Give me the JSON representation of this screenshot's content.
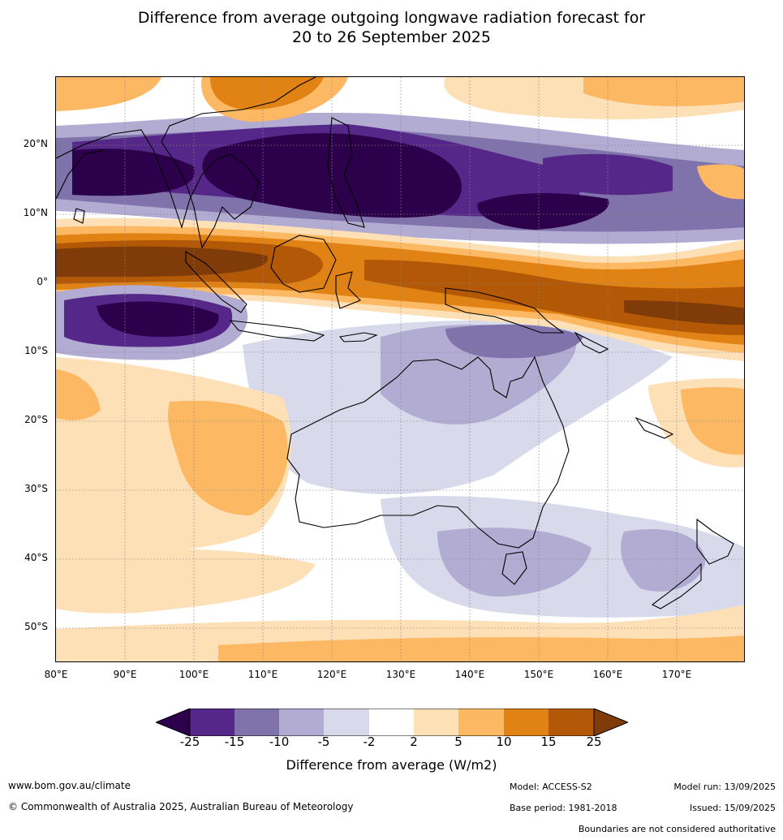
{
  "title": {
    "line1": "Difference from average outgoing longwave radiation forecast for",
    "line2": "20 to 26 September 2025"
  },
  "map": {
    "lat_labels": [
      "20°N",
      "10°N",
      "0°",
      "10°S",
      "20°S",
      "30°S",
      "40°S",
      "50°S"
    ],
    "lon_labels": [
      "80°E",
      "90°E",
      "100°E",
      "110°E",
      "120°E",
      "130°E",
      "140°E",
      "150°E",
      "160°E",
      "170°E"
    ],
    "colors": {
      "m25": "#2d004b",
      "m15": "#542788",
      "m10": "#8073ac",
      "m5": "#b2abd2",
      "m2": "#d8daeb",
      "zero": "#ffffff",
      "p2": "#fee0b6",
      "p5": "#fdb863",
      "p10": "#e08214",
      "p15": "#b35806",
      "p25": "#7f3b08"
    }
  },
  "colorbar": {
    "ticks": [
      "-25",
      "-15",
      "-10",
      "-5",
      "-2",
      "2",
      "5",
      "10",
      "15",
      "25"
    ],
    "label": "Difference from average (W/m2)"
  },
  "footer": {
    "url": "www.bom.gov.au/climate",
    "copyright": "© Commonwealth of Australia 2025, Australian Bureau of Meteorology",
    "model": "Model: ACCESS-S2",
    "base_period": "Base period: 1981-2018",
    "model_run": "Model run: 13/09/2025",
    "issued": "Issued: 15/09/2025",
    "disclaimer": "Boundaries are not considered authoritative"
  }
}
